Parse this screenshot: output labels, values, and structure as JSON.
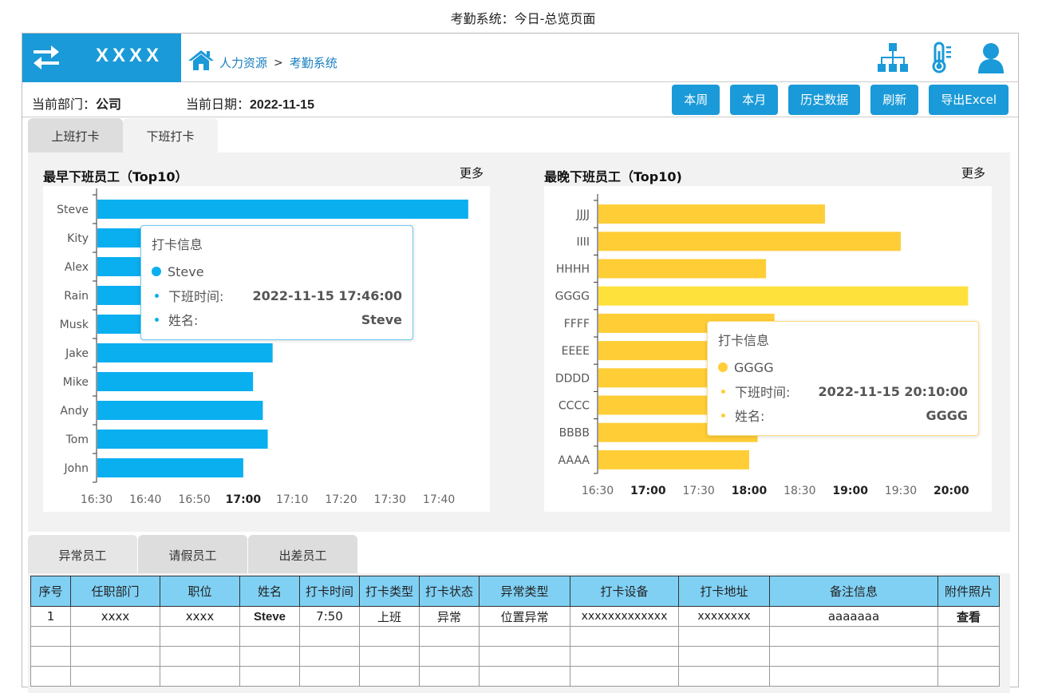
{
  "page_title": "考勤系统：今日-总览页面",
  "header": {
    "brand_name": "XXXX",
    "breadcrumb": [
      "人力资源",
      ">",
      "考勤系统"
    ],
    "icons": [
      "org-chart-icon",
      "thermometer-icon",
      "user-icon"
    ]
  },
  "toolbar": {
    "dept_label": "当前部门：",
    "dept_value": "公司",
    "date_label": "当前日期：",
    "date_value": "2022-11-15",
    "buttons": [
      "本周",
      "本月",
      "历史数据",
      "刷新",
      "导出Excel"
    ]
  },
  "tabs": [
    "上班打卡",
    "下班打卡"
  ],
  "active_tab": 1,
  "colors": {
    "blue": "#0aaff0",
    "yellow": "#ffcd36",
    "yellow_highlight": "#ffe13c",
    "accent": "#1a9ad8"
  },
  "chart_data": [
    {
      "type": "bar",
      "orientation": "horizontal",
      "title": "最早下班员工（Top10）",
      "more_label": "更多",
      "categories": [
        "Steve",
        "Kity",
        "Alex",
        "Rain",
        "Musk",
        "Jake",
        "Mike",
        "Andy",
        "Tom",
        "John"
      ],
      "values": [
        "17:46",
        "16:46",
        "16:58",
        "17:02",
        "17:10",
        "17:06",
        "17:02",
        "17:04",
        "17:05",
        "17:00"
      ],
      "xlim": [
        "16:30",
        "17:47"
      ],
      "x_ticks": [
        "16:30",
        "16:40",
        "16:50",
        "17:00",
        "17:10",
        "17:20",
        "17:30",
        "17:40"
      ],
      "bold_ticks": [
        "17:00"
      ],
      "tooltip": {
        "title": "打卡信息",
        "name": "Steve",
        "time_label": "下班时间:",
        "time_value": "2022-11-15 17:46:00",
        "name_label": "姓名:",
        "name_value": "Steve"
      }
    },
    {
      "type": "bar",
      "orientation": "horizontal",
      "title": "最晚下班员工（Top10)",
      "more_label": "更多",
      "categories": [
        "JJJJ",
        "IIII",
        "HHHH",
        "GGGG",
        "FFFF",
        "EEEE",
        "DDDD",
        "CCCC",
        "BBBB",
        "AAAA"
      ],
      "values": [
        "18:45",
        "19:30",
        "18:10",
        "20:10",
        "18:15",
        "18:10",
        "18:20",
        "18:25",
        "18:05",
        "18:00"
      ],
      "xlim": [
        "16:30",
        "20:15"
      ],
      "x_ticks": [
        "16:30",
        "17:00",
        "17:30",
        "18:00",
        "18:30",
        "19:00",
        "19:30",
        "20:00"
      ],
      "bold_ticks": [
        "17:00",
        "18:00",
        "19:00",
        "20:00"
      ],
      "highlight": "GGGG",
      "tooltip": {
        "title": "打卡信息",
        "name": "GGGG",
        "time_label": "下班时间:",
        "time_value": "2022-11-15 20:10:00",
        "name_label": "姓名:",
        "name_value": "GGGG"
      }
    }
  ],
  "bottom_tabs": [
    "异常员工",
    "请假员工",
    "出差员工"
  ],
  "table": {
    "headers": [
      "序号",
      "任职部门",
      "职位",
      "姓名",
      "打卡时间",
      "打卡类型",
      "打卡状态",
      "异常类型",
      "打卡设备",
      "打卡地址",
      "备注信息",
      "附件照片"
    ],
    "rows": [
      [
        "1",
        "xxxx",
        "xxxx",
        "Steve",
        "7:50",
        "上班",
        "异常",
        "位置异常",
        "xxxxxxxxxxxxx",
        "xxxxxxxx",
        "aaaaaaa",
        "查看"
      ],
      [
        "",
        "",
        "",
        "",
        "",
        "",
        "",
        "",
        "",
        "",
        "",
        ""
      ],
      [
        "",
        "",
        "",
        "",
        "",
        "",
        "",
        "",
        "",
        "",
        "",
        ""
      ],
      [
        "",
        "",
        "",
        "",
        "",
        "",
        "",
        "",
        "",
        "",
        "",
        ""
      ]
    ]
  }
}
